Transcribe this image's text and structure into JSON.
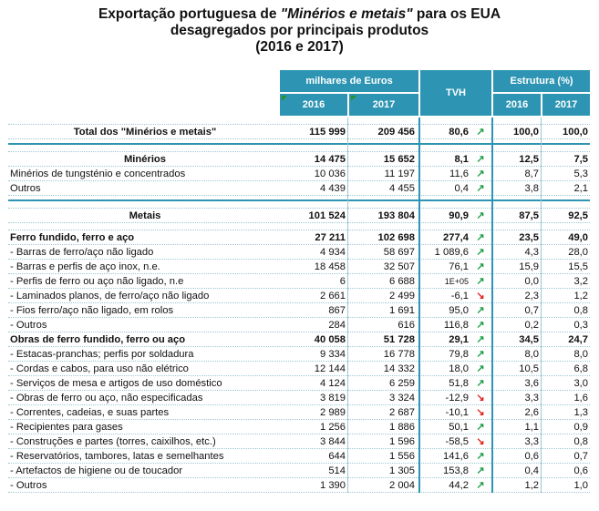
{
  "title": {
    "line1_pre": "Exportação portuguesa de ",
    "line1_em": "\"Minérios e metais\"",
    "line1_post": " para os EUA",
    "line2": "desagregados por principais produtos",
    "line3": "(2016 e 2017)"
  },
  "header": {
    "thousands": "milhares de Euros",
    "tvh": "TVH",
    "structure": "Estrutura (%)",
    "y2016": "2016",
    "y2017": "2017"
  },
  "rows": [
    {
      "type": "gap"
    },
    {
      "label": "Total dos \"Minérios e metais\"",
      "v2016": "115 999",
      "v2017": "209 456",
      "tvh": "80,6",
      "dir": "up",
      "s2016": "100,0",
      "s2017": "100,0",
      "bold": true,
      "center": true
    },
    {
      "type": "gapb"
    },
    {
      "type": "gap"
    },
    {
      "label": "Minérios",
      "v2016": "14 475",
      "v2017": "15 652",
      "tvh": "8,1",
      "dir": "up",
      "s2016": "12,5",
      "s2017": "7,5",
      "bold": true,
      "center": true
    },
    {
      "label": "Minérios de tungsténio e concentrados",
      "v2016": "10 036",
      "v2017": "11 197",
      "tvh": "11,6",
      "dir": "up",
      "s2016": "8,7",
      "s2017": "5,3"
    },
    {
      "label": "Outros",
      "v2016": "4 439",
      "v2017": "4 455",
      "tvh": "0,4",
      "dir": "up",
      "s2016": "3,8",
      "s2017": "2,1"
    },
    {
      "type": "gapb"
    },
    {
      "type": "gap"
    },
    {
      "label": "Metais",
      "v2016": "101 524",
      "v2017": "193 804",
      "tvh": "90,9",
      "dir": "up",
      "s2016": "87,5",
      "s2017": "92,5",
      "bold": true,
      "center": true
    },
    {
      "type": "gap"
    },
    {
      "label": "Ferro fundido, ferro e aço",
      "v2016": "27 211",
      "v2017": "102 698",
      "tvh": "277,4",
      "dir": "up",
      "s2016": "23,5",
      "s2017": "49,0",
      "bold": true
    },
    {
      "label": "- Barras de ferro/aço não ligado",
      "v2016": "4 934",
      "v2017": "58 697",
      "tvh": "1 089,6",
      "dir": "up",
      "s2016": "4,3",
      "s2017": "28,0"
    },
    {
      "label": "- Barras e perfis de aço inox, n.e.",
      "v2016": "18 458",
      "v2017": "32 507",
      "tvh": "76,1",
      "dir": "up",
      "s2016": "15,9",
      "s2017": "15,5"
    },
    {
      "label": "- Perfis de ferro ou aço não ligado, n.e",
      "v2016": "6",
      "v2017": "6 688",
      "tvh": "1E+05",
      "dir": "up",
      "s2016": "0,0",
      "s2017": "3,2",
      "small": true
    },
    {
      "label": "- Laminados planos, de ferro/aço não ligado",
      "v2016": "2 661",
      "v2017": "2 499",
      "tvh": "-6,1",
      "dir": "down",
      "s2016": "2,3",
      "s2017": "1,2"
    },
    {
      "label": "- Fios ferro/aço não ligado, em rolos",
      "v2016": "867",
      "v2017": "1 691",
      "tvh": "95,0",
      "dir": "up",
      "s2016": "0,7",
      "s2017": "0,8"
    },
    {
      "label": "- Outros",
      "v2016": "284",
      "v2017": "616",
      "tvh": "116,8",
      "dir": "up",
      "s2016": "0,2",
      "s2017": "0,3"
    },
    {
      "label": "Obras de ferro fundido, ferro ou aço",
      "v2016": "40 058",
      "v2017": "51 728",
      "tvh": "29,1",
      "dir": "up",
      "s2016": "34,5",
      "s2017": "24,7",
      "bold": true
    },
    {
      "label": "- Estacas-pranchas; perfis por soldadura",
      "v2016": "9 334",
      "v2017": "16 778",
      "tvh": "79,8",
      "dir": "up",
      "s2016": "8,0",
      "s2017": "8,0"
    },
    {
      "label": "- Cordas e cabos, para uso não elétrico",
      "v2016": "12 144",
      "v2017": "14 332",
      "tvh": "18,0",
      "dir": "up",
      "s2016": "10,5",
      "s2017": "6,8"
    },
    {
      "label": "- Serviços de mesa e artigos de uso doméstico",
      "v2016": "4 124",
      "v2017": "6 259",
      "tvh": "51,8",
      "dir": "up",
      "s2016": "3,6",
      "s2017": "3,0"
    },
    {
      "label": "- Obras de ferro ou aço, não especificadas",
      "v2016": "3 819",
      "v2017": "3 324",
      "tvh": "-12,9",
      "dir": "down",
      "s2016": "3,3",
      "s2017": "1,6"
    },
    {
      "label": "- Correntes, cadeias, e suas partes",
      "v2016": "2 989",
      "v2017": "2 687",
      "tvh": "-10,1",
      "dir": "down",
      "s2016": "2,6",
      "s2017": "1,3"
    },
    {
      "label": "- Recipientes para gases",
      "v2016": "1 256",
      "v2017": "1 886",
      "tvh": "50,1",
      "dir": "up",
      "s2016": "1,1",
      "s2017": "0,9"
    },
    {
      "label": "- Construções e partes (torres, caixilhos, etc.)",
      "v2016": "3 844",
      "v2017": "1 596",
      "tvh": "-58,5",
      "dir": "down",
      "s2016": "3,3",
      "s2017": "0,8"
    },
    {
      "label": "- Reservatórios, tambores, latas e semelhantes",
      "v2016": "644",
      "v2017": "1 556",
      "tvh": "141,6",
      "dir": "up",
      "s2016": "0,6",
      "s2017": "0,7"
    },
    {
      "label": "- Artefactos de higiene ou de toucador",
      "v2016": "514",
      "v2017": "1 305",
      "tvh": "153,8",
      "dir": "up",
      "s2016": "0,4",
      "s2017": "0,6"
    },
    {
      "label": "- Outros",
      "v2016": "1 390",
      "v2017": "2 004",
      "tvh": "44,2",
      "dir": "up",
      "s2016": "1,2",
      "s2017": "1,0"
    }
  ],
  "colors": {
    "header_bg": "#2d95b3",
    "up": "#1e9e4a",
    "down": "#e0201b"
  }
}
